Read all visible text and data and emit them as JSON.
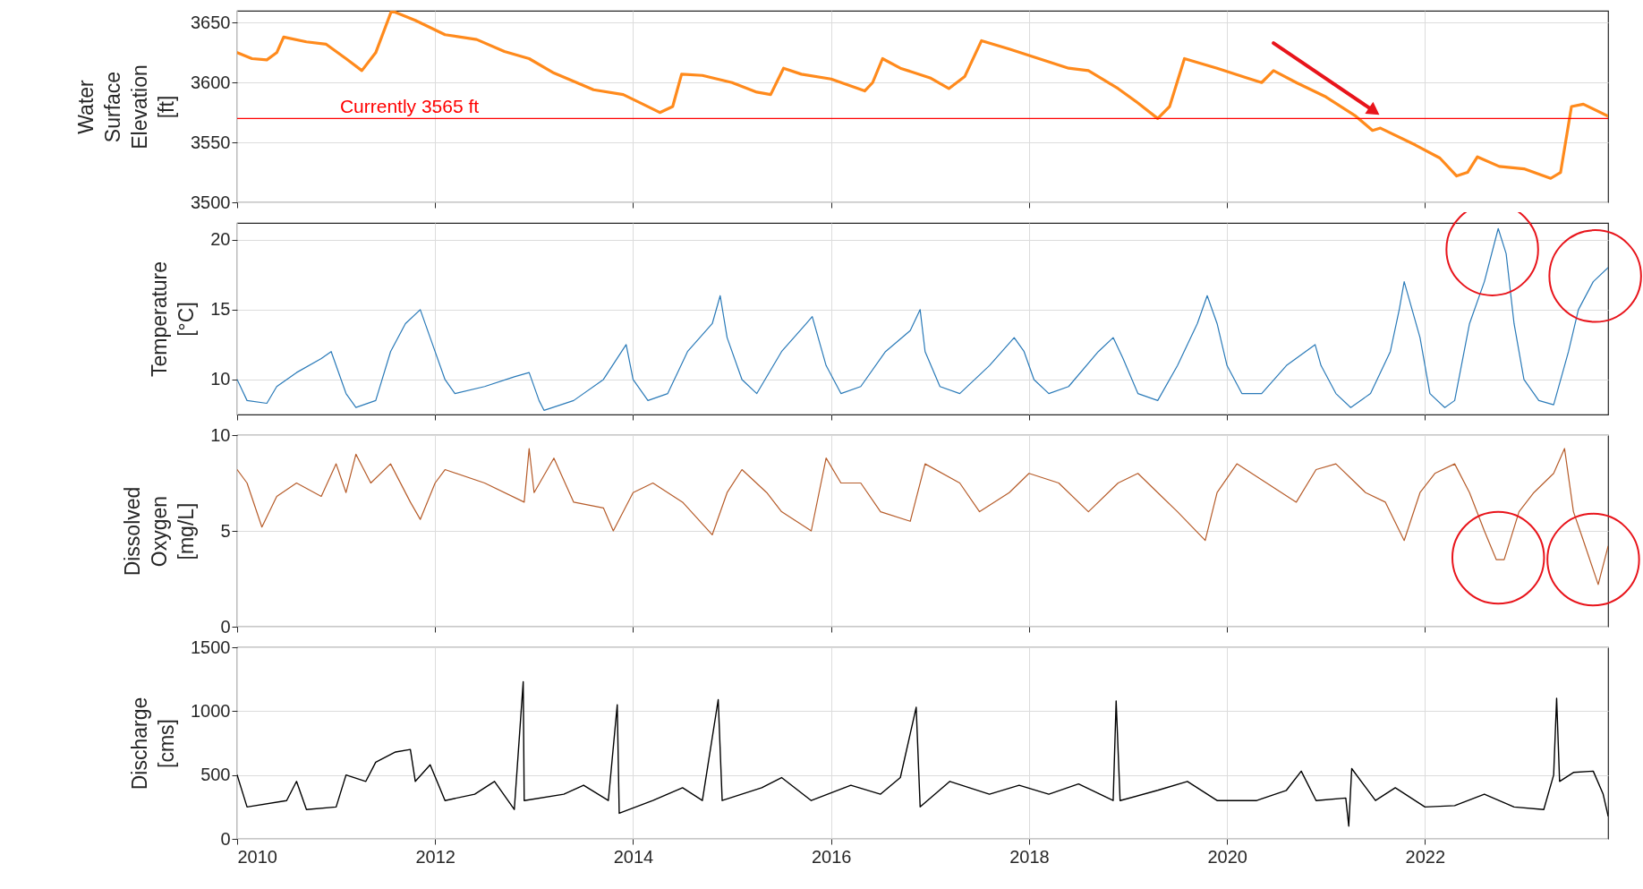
{
  "chart_data": [
    {
      "type": "line",
      "ylabel": "Water\nSurface\nElevation\n[ft]",
      "xlim": [
        2010,
        2023.85
      ],
      "xticks": [
        2010,
        2012,
        2014,
        2016,
        2018,
        2020,
        2022
      ],
      "ylim": [
        3500,
        3660
      ],
      "yticks": [
        3500,
        3550,
        3600,
        3650
      ],
      "grid": true,
      "tick_labels": "y",
      "x": [
        2010,
        2010.15,
        2010.3,
        2010.4,
        2010.47,
        2010.7,
        2010.9,
        2011.1,
        2011.26,
        2011.4,
        2011.56,
        2011.8,
        2012.1,
        2012.42,
        2012.7,
        2012.95,
        2013.2,
        2013.43,
        2013.6,
        2013.9,
        2014.1,
        2014.27,
        2014.4,
        2014.49,
        2014.7,
        2015.0,
        2015.25,
        2015.39,
        2015.52,
        2015.7,
        2016.0,
        2016.34,
        2016.42,
        2016.52,
        2016.7,
        2017.0,
        2017.19,
        2017.35,
        2017.52,
        2017.8,
        2018.1,
        2018.4,
        2018.6,
        2018.9,
        2019.1,
        2019.3,
        2019.42,
        2019.57,
        2019.9,
        2020.2,
        2020.35,
        2020.47,
        2020.7,
        2021.0,
        2021.3,
        2021.47,
        2021.55,
        2021.9,
        2022.15,
        2022.32,
        2022.43,
        2022.53,
        2022.75,
        2023.0,
        2023.27,
        2023.37,
        2023.48,
        2023.6,
        2023.85
      ],
      "series": [
        {
          "color": "#ff8a1c",
          "values": [
            3625,
            3620,
            3619,
            3625,
            3638,
            3634,
            3632,
            3620,
            3610,
            3625,
            3660,
            3652,
            3640,
            3636,
            3626,
            3620,
            3608,
            3600,
            3594,
            3590,
            3582,
            3575,
            3580,
            3607,
            3606,
            3600,
            3592,
            3590,
            3612,
            3607,
            3603,
            3593,
            3600,
            3620,
            3612,
            3604,
            3595,
            3605,
            3635,
            3628,
            3620,
            3612,
            3610,
            3595,
            3583,
            3570,
            3580,
            3620,
            3612,
            3604,
            3600,
            3610,
            3600,
            3588,
            3572,
            3560,
            3562,
            3548,
            3537,
            3522,
            3525,
            3538,
            3530,
            3528,
            3520,
            3525,
            3580,
            3582,
            3572
          ]
        }
      ],
      "ref_lines": [
        {
          "axis": "y",
          "value": 3570,
          "label": "Currently 3565 ft",
          "color": "#ff0000"
        }
      ]
    },
    {
      "type": "line",
      "ylabel": "Temperature\n[°C]",
      "xlim": [
        2010,
        2023.85
      ],
      "xticks": [
        2010,
        2012,
        2014,
        2016,
        2018,
        2020,
        2022
      ],
      "ylim": [
        7.5,
        21.2
      ],
      "yticks": [
        10,
        15,
        20
      ],
      "grid": true,
      "tick_labels": "y",
      "x": [
        2010,
        2010.1,
        2010.3,
        2010.4,
        2010.6,
        2010.85,
        2010.95,
        2011.1,
        2011.2,
        2011.4,
        2011.55,
        2011.7,
        2011.85,
        2011.95,
        2012.1,
        2012.2,
        2012.5,
        2012.8,
        2012.95,
        2013.05,
        2013.1,
        2013.4,
        2013.7,
        2013.93,
        2014.0,
        2014.15,
        2014.35,
        2014.55,
        2014.8,
        2014.88,
        2014.95,
        2015.1,
        2015.25,
        2015.5,
        2015.75,
        2015.81,
        2015.95,
        2016.1,
        2016.3,
        2016.55,
        2016.8,
        2016.9,
        2016.95,
        2017.1,
        2017.3,
        2017.6,
        2017.85,
        2017.95,
        2018.05,
        2018.2,
        2018.4,
        2018.7,
        2018.85,
        2018.95,
        2019.1,
        2019.3,
        2019.5,
        2019.7,
        2019.8,
        2019.9,
        2020.0,
        2020.15,
        2020.35,
        2020.6,
        2020.89,
        2020.95,
        2021.1,
        2021.25,
        2021.45,
        2021.65,
        2021.74,
        2021.79,
        2021.95,
        2022.05,
        2022.2,
        2022.3,
        2022.45,
        2022.6,
        2022.74,
        2022.82,
        2022.9,
        2023.0,
        2023.15,
        2023.3,
        2023.45,
        2023.55,
        2023.7,
        2023.85
      ],
      "series": [
        {
          "color": "#2a7ab8",
          "values": [
            10,
            8.5,
            8.3,
            9.5,
            10.5,
            11.5,
            12,
            9,
            8,
            8.5,
            12,
            14,
            15,
            13,
            10,
            9,
            9.5,
            10.2,
            10.5,
            8.5,
            7.8,
            8.5,
            10,
            12.5,
            10,
            8.5,
            9,
            12,
            14,
            16,
            13,
            10,
            9,
            12,
            14,
            14.5,
            11,
            9,
            9.5,
            12,
            13.5,
            15,
            12,
            9.5,
            9,
            11,
            13,
            12,
            10,
            9,
            9.5,
            12,
            13,
            11.5,
            9,
            8.5,
            11,
            14,
            16,
            14,
            11,
            9,
            9,
            11,
            12.5,
            11,
            9,
            8,
            9,
            12,
            15,
            17,
            13,
            9,
            8,
            8.5,
            14,
            17,
            20.8,
            19,
            14,
            10,
            8.5,
            8.2,
            12,
            15,
            17,
            18
          ]
        }
      ]
    },
    {
      "type": "line",
      "ylabel": "Dissolved\nOxygen\n[mg/L]",
      "xlim": [
        2010,
        2023.85
      ],
      "xticks": [
        2010,
        2012,
        2014,
        2016,
        2018,
        2020,
        2022
      ],
      "ylim": [
        0,
        10
      ],
      "yticks": [
        0,
        5,
        10
      ],
      "grid": true,
      "tick_labels": "y",
      "x": [
        2010,
        2010.1,
        2010.25,
        2010.4,
        2010.6,
        2010.85,
        2011.0,
        2011.1,
        2011.2,
        2011.35,
        2011.55,
        2011.75,
        2011.85,
        2012.0,
        2012.1,
        2012.5,
        2012.9,
        2012.95,
        2013.0,
        2013.2,
        2013.4,
        2013.7,
        2013.8,
        2014.0,
        2014.2,
        2014.5,
        2014.8,
        2014.95,
        2015.1,
        2015.35,
        2015.5,
        2015.8,
        2015.95,
        2016.1,
        2016.3,
        2016.5,
        2016.8,
        2016.95,
        2017.3,
        2017.5,
        2017.8,
        2018.0,
        2018.3,
        2018.6,
        2018.9,
        2019.1,
        2019.3,
        2019.5,
        2019.78,
        2019.9,
        2020.1,
        2020.4,
        2020.7,
        2020.9,
        2021.1,
        2021.4,
        2021.6,
        2021.79,
        2021.95,
        2022.1,
        2022.3,
        2022.45,
        2022.6,
        2022.72,
        2022.8,
        2022.95,
        2023.1,
        2023.3,
        2023.41,
        2023.5,
        2023.6,
        2023.75,
        2023.85
      ],
      "series": [
        {
          "color": "#b65c2a",
          "values": [
            8.2,
            7.5,
            5.2,
            6.8,
            7.5,
            6.8,
            8.5,
            7,
            9,
            7.5,
            8.5,
            6.5,
            5.6,
            7.5,
            8.2,
            7.5,
            6.5,
            9.3,
            7,
            8.8,
            6.5,
            6.2,
            5,
            7,
            7.5,
            6.5,
            4.8,
            7,
            8.2,
            7,
            6,
            5,
            8.8,
            7.5,
            7.5,
            6,
            5.5,
            8.5,
            7.5,
            6,
            7,
            8,
            7.5,
            6,
            7.5,
            8,
            7,
            6,
            4.5,
            7,
            8.5,
            7.5,
            6.5,
            8.2,
            8.5,
            7,
            6.5,
            4.5,
            7,
            8,
            8.5,
            7,
            5,
            3.5,
            3.5,
            6,
            7,
            8,
            9.3,
            6,
            4.5,
            2.2,
            4.2
          ]
        }
      ]
    },
    {
      "type": "line",
      "ylabel": "Discharge\n[cms]",
      "xlim": [
        2010,
        2023.85
      ],
      "xticks": [
        2010,
        2012,
        2014,
        2016,
        2018,
        2020,
        2022
      ],
      "ylim": [
        0,
        1500
      ],
      "yticks": [
        0,
        500,
        1000,
        1500
      ],
      "grid": true,
      "x": [
        2010,
        2010.1,
        2010.5,
        2010.6,
        2010.7,
        2011.0,
        2011.1,
        2011.3,
        2011.4,
        2011.6,
        2011.75,
        2011.8,
        2011.95,
        2012.1,
        2012.4,
        2012.6,
        2012.8,
        2012.89,
        2012.9,
        2013.3,
        2013.5,
        2013.75,
        2013.84,
        2013.86,
        2014.2,
        2014.5,
        2014.7,
        2014.86,
        2014.9,
        2015.3,
        2015.5,
        2015.8,
        2016.2,
        2016.5,
        2016.7,
        2016.86,
        2016.9,
        2017.2,
        2017.6,
        2017.9,
        2018.2,
        2018.5,
        2018.85,
        2018.88,
        2018.92,
        2019.3,
        2019.6,
        2019.9,
        2020.3,
        2020.6,
        2020.75,
        2020.9,
        2021.2,
        2021.23,
        2021.26,
        2021.5,
        2021.7,
        2022.0,
        2022.3,
        2022.6,
        2022.9,
        2023.2,
        2023.3,
        2023.33,
        2023.36,
        2023.5,
        2023.7,
        2023.8,
        2023.85
      ],
      "series": [
        {
          "color": "#000000",
          "values": [
            500,
            250,
            300,
            450,
            230,
            250,
            500,
            450,
            600,
            680,
            700,
            450,
            580,
            300,
            350,
            450,
            230,
            1230,
            300,
            350,
            420,
            300,
            1050,
            200,
            300,
            400,
            300,
            1090,
            300,
            400,
            480,
            300,
            420,
            350,
            480,
            1030,
            250,
            450,
            350,
            420,
            350,
            430,
            300,
            1080,
            300,
            380,
            450,
            300,
            300,
            380,
            530,
            300,
            320,
            100,
            550,
            300,
            400,
            250,
            260,
            350,
            250,
            230,
            500,
            1100,
            450,
            520,
            530,
            350,
            180
          ]
        }
      ]
    }
  ]
}
